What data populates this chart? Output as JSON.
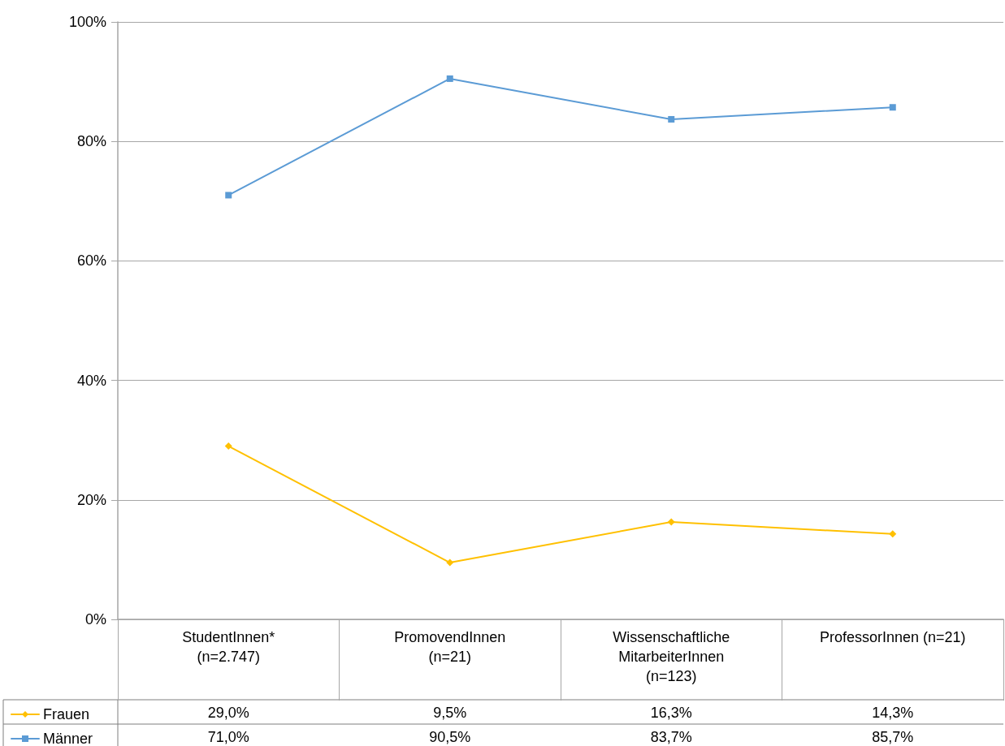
{
  "chart_data": {
    "type": "line",
    "categories": [
      "StudentInnen*\n(n=2.747)",
      "PromovendInnen\n(n=21)",
      "Wissenschaftliche\nMitarbeiterInnen\n(n=123)",
      "ProfessorInnen (n=21)"
    ],
    "series": [
      {
        "name": "Frauen",
        "color": "#ffc000",
        "marker": "diamond",
        "values": [
          29.0,
          9.5,
          16.3,
          14.3
        ],
        "value_labels": [
          "29,0%",
          "9,5%",
          "16,3%",
          "14,3%"
        ]
      },
      {
        "name": "Männer",
        "color": "#5b9bd5",
        "marker": "square",
        "values": [
          71.0,
          90.5,
          83.7,
          85.7
        ],
        "value_labels": [
          "71,0%",
          "90,5%",
          "83,7%",
          "85,7%"
        ]
      }
    ],
    "ylim": [
      0,
      100
    ],
    "yticks": [
      {
        "value": 0,
        "label": "0%"
      },
      {
        "value": 20,
        "label": "20%"
      },
      {
        "value": 40,
        "label": "40%"
      },
      {
        "value": 60,
        "label": "60%"
      },
      {
        "value": 80,
        "label": "80%"
      },
      {
        "value": 100,
        "label": "100%"
      }
    ],
    "grid": "y",
    "legend": "bottom left",
    "line_style": "solid"
  }
}
